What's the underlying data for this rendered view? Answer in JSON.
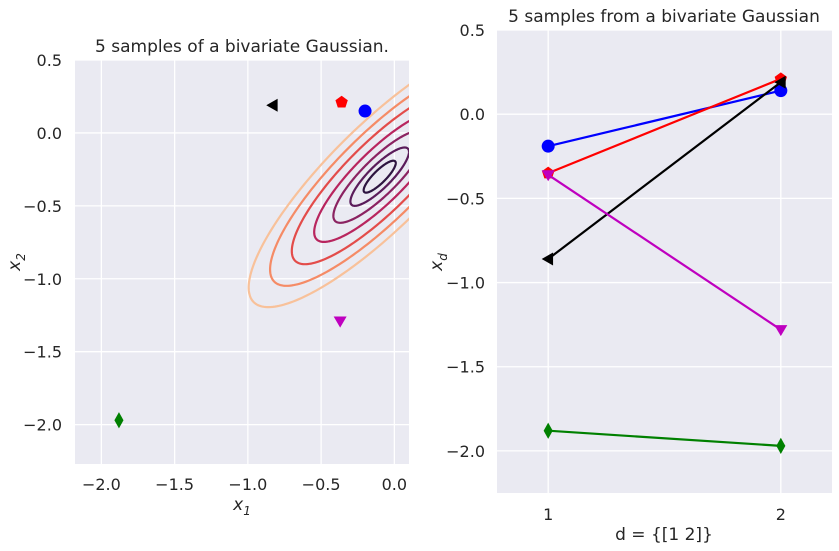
{
  "chart_data": [
    {
      "type": "contour",
      "title": "5 samples of a bivariate Gaussian.",
      "xlabel": "x",
      "xlabel_sub": "1",
      "ylabel": "x",
      "ylabel_sub": "2",
      "xlim": [
        -2.18,
        0.1
      ],
      "ylim": [
        -2.27,
        0.5
      ],
      "xticks": [
        -2.0,
        -1.5,
        -1.0,
        -0.5,
        0.0
      ],
      "xtick_labels": [
        "−2.0",
        "−1.5",
        "−1.0",
        "−0.5",
        "0.0"
      ],
      "yticks": [
        0.5,
        0.0,
        -0.5,
        -1.0,
        -1.5,
        -2.0
      ],
      "ytick_labels": [
        "0.5",
        "0.0",
        "−0.5",
        "−1.0",
        "−1.5",
        "−2.0"
      ],
      "gaussian": {
        "mean": [
          -0.1,
          -0.3
        ],
        "cov": [
          [
            0.4,
            0.34
          ],
          [
            0.34,
            0.4
          ]
        ]
      },
      "contour_levels": [
        0.03,
        0.1,
        0.25,
        0.5,
        0.9,
        1.4,
        2.0
      ],
      "contour_colors": [
        "#2d1540",
        "#5a1c5a",
        "#8b2361",
        "#b8255e",
        "#e34c4a",
        "#f58b66",
        "#f8c19a"
      ],
      "samples": [
        {
          "x": -0.2,
          "y": 0.15,
          "marker": "circle",
          "color": "#0000ff"
        },
        {
          "x": -0.36,
          "y": 0.21,
          "marker": "pentagon",
          "color": "#ff0000"
        },
        {
          "x": -0.83,
          "y": 0.19,
          "marker": "triangle-left",
          "color": "#000000"
        },
        {
          "x": -0.37,
          "y": -1.29,
          "marker": "triangle-down",
          "color": "#bf00bf"
        },
        {
          "x": -1.88,
          "y": -1.97,
          "marker": "diamond",
          "color": "#008000"
        }
      ]
    },
    {
      "type": "line",
      "title": "5 samples from a bivariate Gaussian",
      "xlabel": "d = {[1 2]}",
      "ylabel": "x",
      "ylabel_sub": "d",
      "xlim": [
        0.78,
        2.22
      ],
      "ylim": [
        -2.25,
        0.5
      ],
      "x": [
        1,
        2
      ],
      "xtick_labels": [
        "1",
        "2"
      ],
      "yticks": [
        0.5,
        0.0,
        -0.5,
        -1.0,
        -1.5,
        -2.0
      ],
      "ytick_labels": [
        "0.5",
        "0.0",
        "−0.5",
        "−1.0",
        "−1.5",
        "−2.0"
      ],
      "series": [
        {
          "values": [
            -0.19,
            0.14
          ],
          "color": "#0000ff",
          "marker": "circle"
        },
        {
          "values": [
            -0.35,
            0.21
          ],
          "color": "#ff0000",
          "marker": "pentagon"
        },
        {
          "values": [
            -0.86,
            0.19
          ],
          "color": "#000000",
          "marker": "triangle-left"
        },
        {
          "values": [
            -0.36,
            -1.28
          ],
          "color": "#bf00bf",
          "marker": "triangle-down"
        },
        {
          "values": [
            -1.88,
            -1.97
          ],
          "color": "#008000",
          "marker": "diamond"
        }
      ]
    }
  ],
  "style": {
    "plot_background": "#eaeaf2",
    "grid_color": "#ffffff"
  }
}
